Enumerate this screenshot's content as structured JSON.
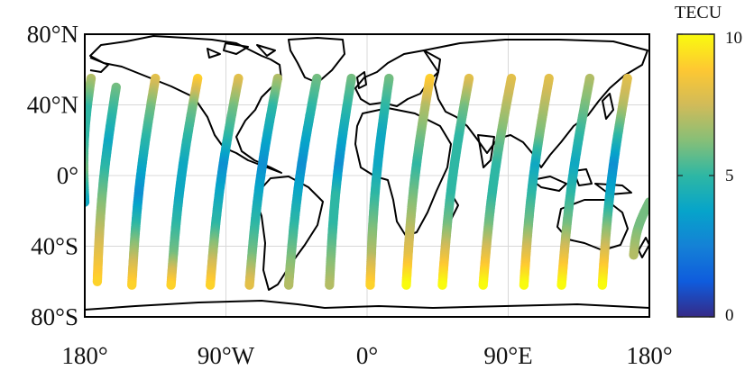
{
  "map": {
    "lat_ticks": [
      "80°N",
      "40°N",
      "0°",
      "40°S",
      "80°S"
    ],
    "lat_values": [
      80,
      40,
      0,
      -40,
      -80
    ],
    "lon_ticks": [
      "180°",
      "90°W",
      "0°",
      "90°E",
      "180°"
    ],
    "lon_values": [
      -180,
      -90,
      0,
      90,
      180
    ],
    "lon_range": [
      -180,
      180
    ],
    "lat_range": [
      -80,
      80
    ],
    "grid": true,
    "coastline_color": "#000000",
    "grid_color": "#d8d8d8",
    "colorbar": {
      "label": "TECU",
      "ticks": [
        "10",
        "5",
        "0"
      ],
      "tick_values": [
        10,
        5,
        0
      ],
      "range": [
        0,
        10
      ],
      "colormap": "parula",
      "stops": [
        "#352a87",
        "#0f5cdd",
        "#1481d6",
        "#06a4ca",
        "#2eb7a4",
        "#87bf77",
        "#d1bb59",
        "#fec832",
        "#f9fb0e"
      ]
    }
  },
  "chart_data": {
    "type": "scatter",
    "description_units": "TECU",
    "tracks": [
      {
        "points": [
          [
            -176,
            55
          ],
          [
            -180,
            -15
          ]
        ],
        "tec": [
          7,
          5,
          5,
          6,
          4
        ]
      },
      {
        "points": [
          [
            -160,
            50
          ],
          [
            -172,
            -60
          ]
        ],
        "tec": [
          6,
          5,
          4,
          5,
          6,
          7,
          8,
          9
        ]
      },
      {
        "points": [
          [
            -135,
            55
          ],
          [
            -150,
            -62
          ]
        ],
        "tec": [
          8,
          6,
          5,
          4,
          3,
          5,
          7,
          9
        ]
      },
      {
        "points": [
          [
            -108,
            55
          ],
          [
            -125,
            -62
          ]
        ],
        "tec": [
          9,
          6,
          5,
          4,
          4,
          5,
          6,
          9
        ]
      },
      {
        "points": [
          [
            -82,
            55
          ],
          [
            -100,
            -62
          ]
        ],
        "tec": [
          8,
          6,
          5,
          3,
          4,
          5,
          7,
          9
        ]
      },
      {
        "points": [
          [
            -57,
            55
          ],
          [
            -75,
            -62
          ]
        ],
        "tec": [
          7,
          5,
          4,
          3,
          4,
          5,
          6,
          8
        ]
      },
      {
        "points": [
          [
            -32,
            55
          ],
          [
            -50,
            -62
          ]
        ],
        "tec": [
          6,
          5,
          4,
          3,
          4,
          5,
          6,
          7
        ]
      },
      {
        "points": [
          [
            -10,
            55
          ],
          [
            -24,
            -62
          ]
        ],
        "tec": [
          6,
          5,
          4,
          3,
          5,
          5,
          6,
          7
        ]
      },
      {
        "points": [
          [
            14,
            55
          ],
          [
            2,
            -62
          ]
        ],
        "tec": [
          6,
          5,
          4,
          4,
          5,
          6,
          7,
          9
        ]
      },
      {
        "points": [
          [
            40,
            55
          ],
          [
            25,
            -62
          ]
        ],
        "tec": [
          9,
          7,
          6,
          5,
          6,
          7,
          8,
          10
        ]
      },
      {
        "points": [
          [
            65,
            55
          ],
          [
            48,
            -62
          ]
        ],
        "tec": [
          8,
          6,
          5,
          5,
          5,
          6,
          8,
          10
        ]
      },
      {
        "points": [
          [
            92,
            55
          ],
          [
            74,
            -62
          ]
        ],
        "tec": [
          8,
          7,
          6,
          5,
          5,
          6,
          8,
          10
        ]
      },
      {
        "points": [
          [
            116,
            55
          ],
          [
            100,
            -62
          ]
        ],
        "tec": [
          8,
          7,
          6,
          4,
          5,
          6,
          8,
          10
        ]
      },
      {
        "points": [
          [
            142,
            55
          ],
          [
            124,
            -62
          ]
        ],
        "tec": [
          7,
          6,
          5,
          4,
          5,
          6,
          8,
          10
        ]
      },
      {
        "points": [
          [
            166,
            55
          ],
          [
            150,
            -62
          ]
        ],
        "tec": [
          8,
          7,
          5,
          3,
          4,
          6,
          8,
          10
        ]
      },
      {
        "points": [
          [
            180,
            -15
          ],
          [
            170,
            -45
          ]
        ],
        "tec": [
          6,
          6,
          7
        ]
      }
    ]
  }
}
